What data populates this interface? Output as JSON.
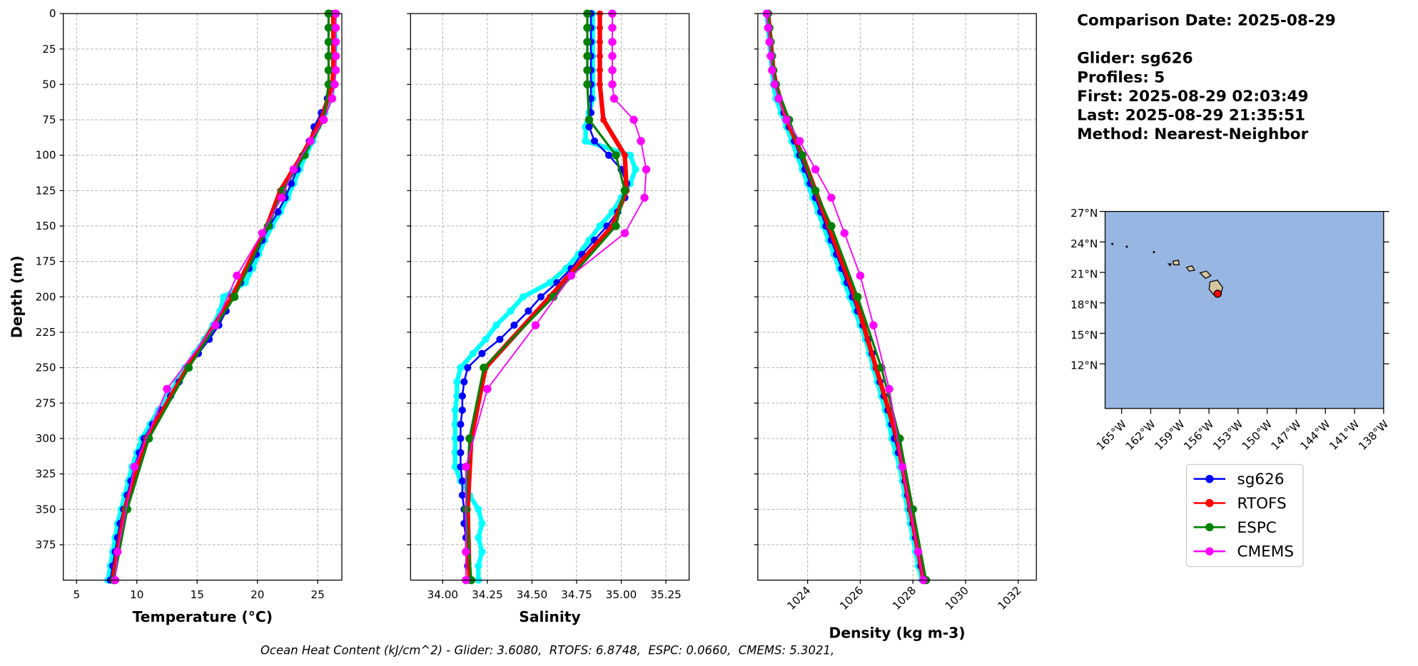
{
  "chart_data": [
    {
      "type": "line",
      "xlabel": "Temperature (°C)",
      "ylabel": "Depth (m)",
      "xlim": [
        3.9,
        27
      ],
      "xticks": [
        5,
        10,
        15,
        20,
        25
      ],
      "ylim": [
        0,
        400
      ],
      "invert_y": true,
      "yticks": [
        0,
        25,
        50,
        75,
        100,
        125,
        150,
        175,
        200,
        225,
        250,
        275,
        300,
        325,
        350,
        375
      ],
      "grid": true,
      "series": [
        {
          "color": "#00ffff",
          "linewidth": 5,
          "markersize": 4,
          "y": [
            0,
            10,
            20,
            30,
            40,
            50,
            60,
            70,
            80,
            90,
            100,
            110,
            120,
            130,
            140,
            150,
            160,
            170,
            180,
            190,
            200,
            210,
            220,
            230,
            240,
            250,
            260,
            270,
            280,
            290,
            300,
            310,
            320,
            330,
            340,
            350,
            360,
            370,
            380,
            390,
            400
          ],
          "values": [
            26.4,
            26.4,
            26.5,
            26.4,
            26.4,
            26.3,
            26.1,
            25.6,
            25.0,
            24.6,
            24.0,
            23.5,
            23.0,
            22.5,
            21.9,
            21.2,
            20.6,
            20.1,
            19.6,
            19.0,
            17.2,
            16.9,
            16.3,
            15.6,
            14.8,
            14.0,
            13.3,
            12.6,
            11.8,
            11.1,
            10.4,
            10.0,
            9.6,
            9.3,
            9.0,
            8.7,
            8.4,
            8.2,
            8.0,
            7.8,
            7.6
          ]
        },
        {
          "name": "sg626",
          "color": "#0000ff",
          "linewidth": 2,
          "markersize": 4,
          "y": [
            0,
            10,
            20,
            30,
            40,
            50,
            60,
            70,
            80,
            90,
            100,
            110,
            120,
            130,
            140,
            150,
            160,
            170,
            180,
            190,
            200,
            210,
            220,
            230,
            240,
            250,
            260,
            270,
            280,
            290,
            300,
            310,
            320,
            330,
            340,
            350,
            360,
            370,
            380,
            390,
            400
          ],
          "values": [
            26.2,
            26.2,
            26.2,
            26.2,
            26.2,
            26.1,
            25.8,
            25.3,
            24.7,
            24.3,
            23.8,
            23.3,
            22.8,
            22.3,
            21.7,
            21.0,
            20.4,
            19.9,
            19.3,
            18.6,
            17.9,
            17.4,
            16.8,
            16.0,
            15.1,
            14.3,
            13.5,
            12.8,
            12.0,
            11.3,
            10.6,
            10.2,
            9.8,
            9.5,
            9.2,
            8.9,
            8.6,
            8.4,
            8.2,
            8.0,
            7.8
          ]
        },
        {
          "name": "RTOFS",
          "color": "#ff0000",
          "linewidth": 5,
          "markersize": 3.5,
          "y": [
            0,
            10,
            20,
            30,
            40,
            50,
            75,
            100,
            125,
            150,
            200,
            250,
            300,
            350,
            400
          ],
          "values": [
            26.3,
            26.3,
            26.3,
            26.3,
            26.3,
            26.2,
            25.3,
            23.7,
            21.9,
            20.8,
            17.9,
            14.2,
            10.8,
            9.0,
            8.0
          ]
        },
        {
          "name": "ESPC",
          "color": "#008000",
          "linewidth": 2.5,
          "markersize": 4.5,
          "y": [
            0,
            10,
            20,
            30,
            40,
            50,
            75,
            100,
            125,
            150,
            200,
            250,
            300,
            350,
            400
          ],
          "values": [
            25.9,
            25.9,
            25.9,
            25.9,
            25.9,
            25.9,
            25.5,
            23.9,
            22.1,
            20.9,
            18.1,
            14.3,
            11.0,
            9.2,
            8.1
          ]
        },
        {
          "name": "CMEMS",
          "color": "#ff00ff",
          "linewidth": 1.5,
          "markersize": 4.5,
          "y": [
            0,
            10,
            20,
            30,
            40,
            50,
            60,
            75,
            90,
            110,
            130,
            155,
            185,
            220,
            265,
            320,
            380,
            400
          ],
          "values": [
            26.5,
            26.5,
            26.5,
            26.5,
            26.5,
            26.4,
            26.2,
            25.5,
            24.4,
            23.0,
            22.0,
            20.4,
            18.3,
            16.5,
            12.5,
            9.8,
            8.4,
            8.2
          ]
        }
      ]
    },
    {
      "type": "line",
      "xlabel": "Salinity",
      "xlim": [
        33.82,
        35.38
      ],
      "xticks": [
        {
          "value": 34,
          "label": "34.00"
        },
        34.25,
        {
          "value": 34.5,
          "label": "34.50"
        },
        34.75,
        {
          "value": 35,
          "label": "35.00"
        },
        35.25
      ],
      "ylim": [
        0,
        400
      ],
      "invert_y": true,
      "yticks": [
        0,
        25,
        50,
        75,
        100,
        125,
        150,
        175,
        200,
        225,
        250,
        275,
        300,
        325,
        350,
        375
      ],
      "grid": true,
      "series": [
        {
          "y": [
            0,
            10,
            20,
            30,
            40,
            50,
            60,
            70,
            80,
            90,
            100,
            110,
            120,
            130,
            140,
            150,
            160,
            170,
            180,
            190,
            200,
            210,
            220,
            230,
            240,
            250,
            260,
            270,
            280,
            290,
            300,
            310,
            320,
            330,
            340,
            350,
            360,
            370,
            380,
            390,
            400
          ],
          "values": [
            34.84,
            34.84,
            34.84,
            34.84,
            34.84,
            34.84,
            34.84,
            34.82,
            34.8,
            34.8,
            35.05,
            35.08,
            35.05,
            35.0,
            34.95,
            34.88,
            34.82,
            34.76,
            34.69,
            34.6,
            34.45,
            34.38,
            34.3,
            34.24,
            34.17,
            34.1,
            34.08,
            34.08,
            34.07,
            34.07,
            34.07,
            34.07,
            34.07,
            34.1,
            34.15,
            34.2,
            34.22,
            34.2,
            34.22,
            34.2,
            34.2
          ]
        },
        {
          "y": [
            0,
            10,
            20,
            30,
            40,
            50,
            60,
            70,
            80,
            90,
            100,
            110,
            120,
            130,
            140,
            150,
            160,
            170,
            180,
            190,
            200,
            210,
            220,
            230,
            240,
            250,
            260,
            270,
            280,
            290,
            300,
            310,
            320,
            330,
            340,
            350,
            360,
            370,
            380,
            390,
            400
          ],
          "values": [
            34.83,
            34.83,
            34.83,
            34.83,
            34.83,
            34.83,
            34.83,
            34.83,
            34.82,
            34.85,
            34.93,
            35.0,
            35.03,
            35.02,
            34.98,
            34.92,
            34.85,
            34.78,
            34.72,
            34.64,
            34.55,
            34.48,
            34.4,
            34.32,
            34.22,
            34.14,
            34.12,
            34.11,
            34.11,
            34.1,
            34.1,
            34.1,
            34.1,
            34.11,
            34.11,
            34.12,
            34.12,
            34.13,
            34.13,
            34.14,
            34.15
          ]
        },
        {
          "y": [
            0,
            10,
            20,
            30,
            40,
            50,
            75,
            100,
            125,
            150,
            200,
            250,
            300,
            350,
            400
          ],
          "values": [
            34.88,
            34.88,
            34.88,
            34.88,
            34.88,
            34.88,
            34.9,
            35.02,
            35.03,
            34.95,
            34.6,
            34.24,
            34.16,
            34.14,
            34.15
          ]
        },
        {
          "y": [
            0,
            10,
            20,
            30,
            40,
            50,
            75,
            100,
            125,
            150,
            200,
            250,
            300,
            350,
            400
          ],
          "values": [
            34.81,
            34.81,
            34.81,
            34.81,
            34.81,
            34.81,
            34.82,
            34.97,
            35.02,
            34.97,
            34.62,
            34.23,
            34.15,
            34.13,
            34.16
          ]
        },
        {
          "y": [
            0,
            10,
            20,
            30,
            40,
            50,
            60,
            75,
            90,
            110,
            130,
            155,
            185,
            220,
            265,
            320,
            380,
            400
          ],
          "values": [
            34.95,
            34.95,
            34.95,
            34.95,
            34.95,
            34.95,
            34.96,
            35.07,
            35.11,
            35.14,
            35.13,
            35.02,
            34.72,
            34.52,
            34.25,
            34.13,
            34.13,
            34.13
          ]
        }
      ]
    },
    {
      "type": "line",
      "xlabel": "Density (kg m-3)",
      "xlim": [
        1022.11,
        1032.69
      ],
      "xticks": [
        1024,
        1026,
        1028,
        1030,
        1032
      ],
      "ylim": [
        0,
        400
      ],
      "invert_y": true,
      "yticks": [
        0,
        25,
        50,
        75,
        100,
        125,
        150,
        175,
        200,
        225,
        250,
        275,
        300,
        325,
        350,
        375
      ],
      "grid": true,
      "series": [
        {
          "y": [
            0,
            10,
            20,
            30,
            40,
            50,
            60,
            70,
            80,
            90,
            100,
            110,
            120,
            130,
            140,
            150,
            160,
            170,
            180,
            190,
            200,
            210,
            220,
            230,
            240,
            250,
            260,
            270,
            280,
            290,
            300,
            310,
            320,
            330,
            340,
            350,
            360,
            370,
            380,
            390,
            400
          ],
          "values": [
            1022.45,
            1022.5,
            1022.55,
            1022.6,
            1022.65,
            1022.7,
            1022.8,
            1023.0,
            1023.2,
            1023.4,
            1023.6,
            1023.8,
            1024.0,
            1024.2,
            1024.4,
            1024.6,
            1024.8,
            1025.0,
            1025.2,
            1025.4,
            1025.6,
            1025.8,
            1026.0,
            1026.2,
            1026.35,
            1026.5,
            1026.65,
            1026.8,
            1026.95,
            1027.1,
            1027.2,
            1027.35,
            1027.5,
            1027.6,
            1027.7,
            1027.8,
            1027.9,
            1028.0,
            1028.1,
            1028.2,
            1028.35
          ]
        },
        {
          "y": [
            0,
            10,
            20,
            30,
            40,
            50,
            60,
            70,
            80,
            90,
            100,
            110,
            120,
            130,
            140,
            150,
            160,
            170,
            180,
            190,
            200,
            210,
            220,
            230,
            240,
            250,
            260,
            270,
            280,
            290,
            300,
            310,
            320,
            330,
            340,
            350,
            360,
            370,
            380,
            390,
            400
          ],
          "values": [
            1022.5,
            1022.55,
            1022.6,
            1022.65,
            1022.7,
            1022.8,
            1022.9,
            1023.1,
            1023.3,
            1023.5,
            1023.7,
            1023.9,
            1024.1,
            1024.3,
            1024.5,
            1024.7,
            1024.9,
            1025.1,
            1025.3,
            1025.5,
            1025.7,
            1025.9,
            1026.1,
            1026.3,
            1026.45,
            1026.6,
            1026.75,
            1026.9,
            1027.05,
            1027.2,
            1027.3,
            1027.45,
            1027.6,
            1027.7,
            1027.8,
            1027.9,
            1028.0,
            1028.1,
            1028.2,
            1028.3,
            1028.45
          ]
        },
        {
          "y": [
            0,
            10,
            20,
            30,
            40,
            50,
            75,
            100,
            125,
            150,
            200,
            250,
            300,
            350,
            400
          ],
          "values": [
            1022.5,
            1022.55,
            1022.6,
            1022.65,
            1022.7,
            1022.8,
            1023.2,
            1023.8,
            1024.3,
            1024.8,
            1025.8,
            1026.6,
            1027.4,
            1027.9,
            1028.4
          ]
        },
        {
          "y": [
            0,
            10,
            20,
            30,
            40,
            50,
            75,
            100,
            125,
            150,
            200,
            250,
            300,
            350,
            400
          ],
          "values": [
            1022.5,
            1022.55,
            1022.6,
            1022.65,
            1022.7,
            1022.8,
            1023.3,
            1023.8,
            1024.3,
            1024.9,
            1025.9,
            1026.8,
            1027.5,
            1028.0,
            1028.5
          ]
        },
        {
          "y": [
            0,
            10,
            20,
            30,
            40,
            50,
            60,
            75,
            90,
            110,
            130,
            155,
            185,
            220,
            265,
            320,
            380,
            400
          ],
          "values": [
            1022.45,
            1022.5,
            1022.55,
            1022.6,
            1022.65,
            1022.75,
            1022.9,
            1023.2,
            1023.7,
            1024.3,
            1024.9,
            1025.4,
            1026.0,
            1026.5,
            1027.1,
            1027.6,
            1028.2,
            1028.4
          ]
        }
      ]
    },
    {
      "type": "map",
      "xlim": [
        -166.7,
        -138
      ],
      "ylim": [
        7.6,
        27
      ],
      "xticks": [
        {
          "value": -165,
          "label": "165°W"
        },
        {
          "value": -162,
          "label": "162°W"
        },
        {
          "value": -159,
          "label": "159°W"
        },
        {
          "value": -156,
          "label": "156°W"
        },
        {
          "value": -153,
          "label": "153°W"
        },
        {
          "value": -150,
          "label": "150°W"
        },
        {
          "value": -147,
          "label": "147°W"
        },
        {
          "value": -144,
          "label": "144°W"
        },
        {
          "value": -141,
          "label": "141°W"
        },
        {
          "value": -138,
          "label": "138°W"
        }
      ],
      "yticks": [
        {
          "value": 27,
          "label": "27°N"
        },
        {
          "value": 24,
          "label": "24°N"
        },
        {
          "value": 21,
          "label": "21°N"
        },
        {
          "value": 18,
          "label": "18°N"
        },
        {
          "value": 15,
          "label": "15°N"
        },
        {
          "value": 12,
          "label": "12°N"
        }
      ],
      "ocean_color": "#97b6e1",
      "land_color": "#d6c7a1",
      "x": [
        -155.1
      ],
      "values": [
        18.9
      ],
      "color": "#ff0000"
    }
  ],
  "info": [
    "Comparison Date: 2025-08-29",
    "Glider: sg626",
    "Profiles: 5",
    "First: 2025-08-29 02:03:49",
    "Last: 2025-08-29 21:35:51",
    "Method: Nearest-Neighbor"
  ],
  "footer": "Ocean Heat Content (kJ/cm^2) - Glider: 3.6080,  RTOFS: 6.8748,  ESPC: 0.0660,  CMEMS: 5.3021,"
}
